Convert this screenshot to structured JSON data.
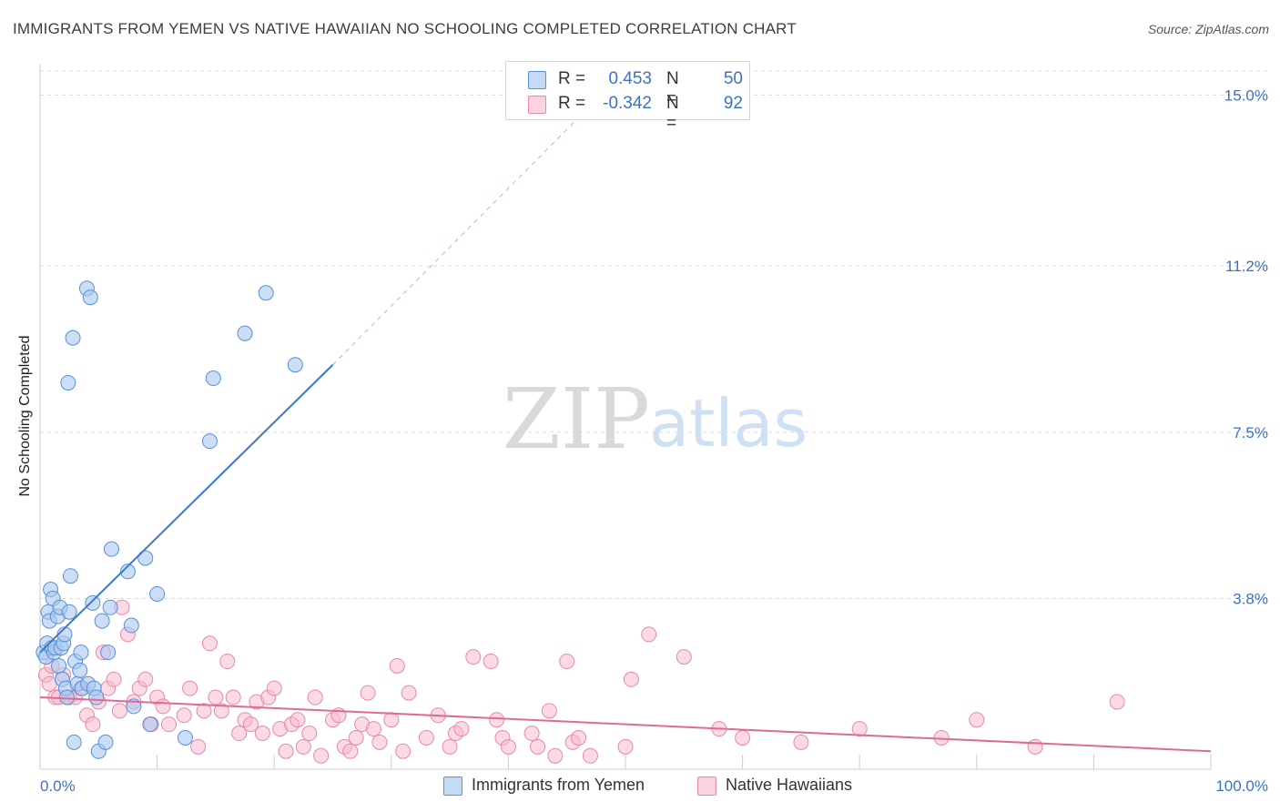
{
  "header": {
    "title": "IMMIGRANTS FROM YEMEN VS NATIVE HAWAIIAN NO SCHOOLING COMPLETED CORRELATION CHART",
    "source": "Source: ZipAtlas.com"
  },
  "watermark": {
    "zip": "ZIP",
    "atlas": "atlas"
  },
  "legend": {
    "r_label": "R =",
    "n_label": "N =",
    "series1": {
      "r": "0.453",
      "n": "50"
    },
    "series2": {
      "r": "-0.342",
      "n": "92"
    }
  },
  "colors": {
    "blue_fill": "#a9c8f0",
    "blue_stroke": "#5b8fd6",
    "blue_line": "#3a78d0",
    "pink_fill": "#f7bcd0",
    "pink_stroke": "#e58aaa",
    "pink_line": "#e06a94",
    "grid": "#dcdcdc",
    "axis_text": "#3b72c4"
  },
  "chart_data": {
    "type": "scatter",
    "title": "IMMIGRANTS FROM YEMEN VS NATIVE HAWAIIAN NO SCHOOLING COMPLETED CORRELATION CHART",
    "xlabel": "",
    "ylabel": "No Schooling Completed",
    "xlim": [
      0,
      100
    ],
    "ylim": [
      0,
      15.7
    ],
    "x_tick_labels": [
      "0.0%",
      "100.0%"
    ],
    "y_ticks": [
      3.8,
      7.5,
      11.2,
      15.0
    ],
    "y_tick_labels": [
      "3.8%",
      "7.5%",
      "11.2%",
      "15.0%"
    ],
    "series": [
      {
        "name": "Immigrants from Yemen",
        "r": 0.453,
        "n": 50,
        "trend": {
          "x0": 0,
          "y0": 2.6,
          "x1": 25,
          "y1": 9.0,
          "dashed_to_x": 46,
          "dashed_to_y": 14.5
        },
        "points": [
          [
            0.3,
            2.6
          ],
          [
            0.5,
            2.5
          ],
          [
            0.6,
            2.8
          ],
          [
            0.7,
            3.5
          ],
          [
            0.8,
            3.3
          ],
          [
            0.9,
            4.0
          ],
          [
            1.0,
            2.7
          ],
          [
            1.1,
            3.8
          ],
          [
            1.2,
            2.6
          ],
          [
            1.3,
            2.7
          ],
          [
            1.5,
            3.4
          ],
          [
            1.6,
            2.3
          ],
          [
            1.7,
            3.6
          ],
          [
            1.8,
            2.7
          ],
          [
            1.9,
            2.0
          ],
          [
            2.0,
            2.8
          ],
          [
            2.1,
            3.0
          ],
          [
            2.2,
            1.8
          ],
          [
            2.3,
            1.6
          ],
          [
            2.4,
            8.6
          ],
          [
            2.5,
            3.5
          ],
          [
            2.6,
            4.3
          ],
          [
            2.8,
            9.6
          ],
          [
            2.9,
            0.6
          ],
          [
            3.0,
            2.4
          ],
          [
            3.2,
            1.9
          ],
          [
            3.4,
            2.2
          ],
          [
            3.5,
            2.6
          ],
          [
            3.6,
            1.8
          ],
          [
            4.0,
            10.7
          ],
          [
            4.1,
            1.9
          ],
          [
            4.3,
            10.5
          ],
          [
            4.5,
            3.7
          ],
          [
            4.6,
            1.8
          ],
          [
            4.8,
            1.6
          ],
          [
            5.0,
            0.4
          ],
          [
            5.3,
            3.3
          ],
          [
            5.6,
            0.6
          ],
          [
            5.8,
            2.6
          ],
          [
            6.0,
            3.6
          ],
          [
            6.1,
            4.9
          ],
          [
            7.5,
            4.4
          ],
          [
            7.8,
            3.2
          ],
          [
            8.0,
            1.4
          ],
          [
            9.0,
            4.7
          ],
          [
            9.4,
            1.0
          ],
          [
            10.0,
            3.9
          ],
          [
            12.4,
            0.7
          ],
          [
            14.5,
            7.3
          ],
          [
            14.8,
            8.7
          ]
        ],
        "points_extra": [
          [
            17.5,
            9.7
          ],
          [
            19.3,
            10.6
          ],
          [
            21.8,
            9.0
          ]
        ]
      },
      {
        "name": "Native Hawaiians",
        "r": -0.342,
        "n": 92,
        "trend": {
          "x0": 0,
          "y0": 1.6,
          "x1": 100,
          "y1": 0.4
        },
        "points": [
          [
            0.5,
            2.1
          ],
          [
            0.8,
            1.9
          ],
          [
            1.0,
            2.3
          ],
          [
            1.3,
            1.6
          ],
          [
            1.6,
            1.6
          ],
          [
            2.0,
            2.1
          ],
          [
            2.5,
            1.6
          ],
          [
            3.0,
            1.6
          ],
          [
            3.5,
            1.8
          ],
          [
            4.0,
            1.2
          ],
          [
            4.5,
            1.0
          ],
          [
            5.0,
            1.5
          ],
          [
            5.4,
            2.6
          ],
          [
            5.8,
            1.8
          ],
          [
            6.3,
            2.0
          ],
          [
            6.8,
            1.3
          ],
          [
            7.0,
            3.6
          ],
          [
            7.5,
            3.0
          ],
          [
            8.0,
            1.5
          ],
          [
            8.5,
            1.8
          ],
          [
            9.0,
            2.0
          ],
          [
            9.5,
            1.0
          ],
          [
            10.0,
            1.6
          ],
          [
            10.5,
            1.4
          ],
          [
            11.0,
            1.0
          ],
          [
            12.3,
            1.2
          ],
          [
            12.8,
            1.8
          ],
          [
            13.5,
            0.5
          ],
          [
            14.0,
            1.3
          ],
          [
            14.5,
            2.8
          ],
          [
            15.0,
            1.6
          ],
          [
            15.5,
            1.3
          ],
          [
            16.0,
            2.4
          ],
          [
            16.5,
            1.6
          ],
          [
            17.0,
            0.8
          ],
          [
            17.5,
            1.1
          ],
          [
            18.0,
            1.0
          ],
          [
            18.5,
            1.5
          ],
          [
            19.0,
            0.8
          ],
          [
            19.5,
            1.6
          ],
          [
            20.0,
            1.8
          ],
          [
            20.5,
            0.9
          ],
          [
            21.0,
            0.4
          ],
          [
            21.5,
            1.0
          ],
          [
            22.0,
            1.1
          ],
          [
            22.5,
            0.5
          ],
          [
            23.0,
            0.8
          ],
          [
            23.5,
            1.6
          ],
          [
            24.0,
            0.3
          ],
          [
            25.0,
            1.1
          ],
          [
            25.5,
            1.2
          ],
          [
            26.0,
            0.5
          ],
          [
            26.5,
            0.4
          ],
          [
            27.0,
            0.7
          ],
          [
            27.5,
            1.0
          ],
          [
            28.0,
            1.7
          ],
          [
            28.5,
            0.9
          ],
          [
            29.0,
            0.6
          ],
          [
            30.0,
            1.1
          ],
          [
            30.5,
            2.3
          ],
          [
            31.0,
            0.4
          ],
          [
            31.5,
            1.7
          ],
          [
            33.0,
            0.7
          ],
          [
            34.0,
            1.2
          ],
          [
            35.0,
            0.5
          ],
          [
            35.5,
            0.8
          ],
          [
            36.0,
            0.9
          ],
          [
            37.0,
            2.5
          ],
          [
            38.5,
            2.4
          ],
          [
            39.0,
            1.1
          ],
          [
            39.5,
            0.7
          ],
          [
            40.0,
            0.5
          ],
          [
            42.0,
            0.8
          ],
          [
            42.5,
            0.5
          ],
          [
            43.5,
            1.3
          ],
          [
            44.0,
            0.3
          ],
          [
            45.0,
            2.4
          ],
          [
            45.5,
            0.6
          ],
          [
            46.0,
            0.7
          ],
          [
            47.0,
            0.3
          ],
          [
            50.0,
            0.5
          ],
          [
            50.5,
            2.0
          ],
          [
            52.0,
            3.0
          ],
          [
            55.0,
            2.5
          ],
          [
            58.0,
            0.9
          ],
          [
            60.0,
            0.7
          ],
          [
            65.0,
            0.6
          ],
          [
            70.0,
            0.9
          ],
          [
            77.0,
            0.7
          ],
          [
            80.0,
            1.1
          ],
          [
            85.0,
            0.5
          ],
          [
            92.0,
            1.5
          ]
        ]
      }
    ]
  },
  "bottom_legend": {
    "item1": "Immigrants from Yemen",
    "item2": "Native Hawaiians"
  }
}
